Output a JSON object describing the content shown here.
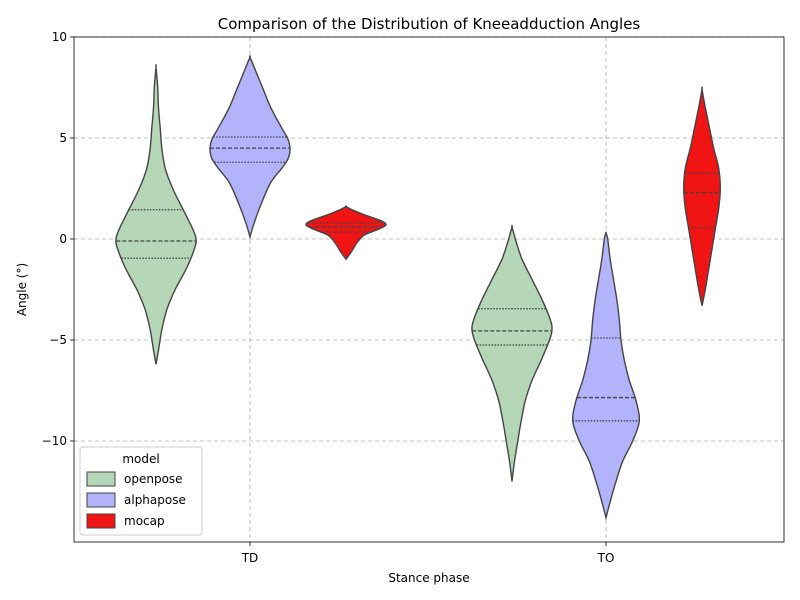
{
  "chart_data": {
    "type": "violin",
    "title": "Comparison of the Distribution of Kneeadduction Angles",
    "xlabel": "Stance phase",
    "ylabel": "Angle (°)",
    "categories": [
      "TD",
      "TO"
    ],
    "ylim": [
      -15,
      10
    ],
    "yticks": [
      -10,
      -5,
      0,
      5,
      10
    ],
    "grid": true,
    "legend": {
      "title": "model",
      "placement": "lower-left"
    },
    "series": [
      {
        "name": "openpose",
        "color": "#b5d6b7",
        "violins": [
          {
            "category": "TD",
            "profile": [
              [
                -6.2,
                0.0
              ],
              [
                -5.5,
                0.03
              ],
              [
                -4.5,
                0.07
              ],
              [
                -3.5,
                0.13
              ],
              [
                -2.5,
                0.23
              ],
              [
                -1.5,
                0.36
              ],
              [
                -0.5,
                0.46
              ],
              [
                0.0,
                0.48
              ],
              [
                0.5,
                0.44
              ],
              [
                1.5,
                0.32
              ],
              [
                2.5,
                0.2
              ],
              [
                3.5,
                0.11
              ],
              [
                4.5,
                0.07
              ],
              [
                5.5,
                0.05
              ],
              [
                6.5,
                0.03
              ],
              [
                7.5,
                0.02
              ],
              [
                8.5,
                0.0
              ]
            ],
            "quartiles": [
              -0.95,
              -0.1,
              1.45
            ]
          },
          {
            "category": "TO",
            "profile": [
              [
                -12.0,
                0.0
              ],
              [
                -11.0,
                0.03
              ],
              [
                -10.0,
                0.07
              ],
              [
                -9.0,
                0.11
              ],
              [
                -8.0,
                0.16
              ],
              [
                -7.0,
                0.24
              ],
              [
                -6.0,
                0.35
              ],
              [
                -5.0,
                0.45
              ],
              [
                -4.5,
                0.48
              ],
              [
                -4.0,
                0.46
              ],
              [
                -3.0,
                0.36
              ],
              [
                -2.0,
                0.24
              ],
              [
                -1.0,
                0.12
              ],
              [
                0.0,
                0.04
              ],
              [
                0.6,
                0.0
              ]
            ],
            "quartiles": [
              -5.25,
              -4.55,
              -3.45
            ]
          }
        ]
      },
      {
        "name": "alphapose",
        "color": "#b3b3fb",
        "violins": [
          {
            "category": "TD",
            "profile": [
              [
                0.1,
                0.0
              ],
              [
                0.8,
                0.05
              ],
              [
                1.8,
                0.14
              ],
              [
                2.8,
                0.25
              ],
              [
                3.5,
                0.38
              ],
              [
                4.0,
                0.46
              ],
              [
                4.5,
                0.48
              ],
              [
                5.0,
                0.45
              ],
              [
                5.5,
                0.38
              ],
              [
                6.5,
                0.25
              ],
              [
                7.5,
                0.15
              ],
              [
                8.5,
                0.05
              ],
              [
                9.0,
                0.0
              ]
            ],
            "quartiles": [
              3.8,
              4.5,
              5.05
            ]
          },
          {
            "category": "TO",
            "profile": [
              [
                -13.8,
                0.0
              ],
              [
                -13.0,
                0.05
              ],
              [
                -12.0,
                0.12
              ],
              [
                -11.0,
                0.2
              ],
              [
                -10.0,
                0.32
              ],
              [
                -9.0,
                0.4
              ],
              [
                -8.0,
                0.36
              ],
              [
                -7.0,
                0.28
              ],
              [
                -6.0,
                0.22
              ],
              [
                -5.0,
                0.18
              ],
              [
                -4.0,
                0.16
              ],
              [
                -3.0,
                0.13
              ],
              [
                -2.0,
                0.09
              ],
              [
                -1.0,
                0.05
              ],
              [
                0.0,
                0.02
              ],
              [
                0.3,
                0.0
              ]
            ],
            "quartiles": [
              -9.0,
              -7.85,
              -4.9
            ]
          }
        ]
      },
      {
        "name": "mocap",
        "color": "#f01414",
        "violins": [
          {
            "category": "TD",
            "profile": [
              [
                -1.0,
                0.0
              ],
              [
                -0.6,
                0.07
              ],
              [
                -0.2,
                0.13
              ],
              [
                0.2,
                0.22
              ],
              [
                0.5,
                0.4
              ],
              [
                0.7,
                0.48
              ],
              [
                0.9,
                0.42
              ],
              [
                1.2,
                0.22
              ],
              [
                1.4,
                0.1
              ],
              [
                1.6,
                0.0
              ]
            ],
            "quartiles": [
              0.35,
              0.6,
              0.8
            ]
          },
          {
            "category": "TO",
            "profile": [
              [
                -3.3,
                0.0
              ],
              [
                -2.5,
                0.04
              ],
              [
                -1.5,
                0.08
              ],
              [
                -0.5,
                0.12
              ],
              [
                0.5,
                0.16
              ],
              [
                1.5,
                0.2
              ],
              [
                2.5,
                0.22
              ],
              [
                3.5,
                0.2
              ],
              [
                4.5,
                0.14
              ],
              [
                5.5,
                0.09
              ],
              [
                6.5,
                0.04
              ],
              [
                7.4,
                0.0
              ]
            ],
            "quartiles": [
              0.55,
              2.3,
              3.25
            ]
          }
        ]
      }
    ]
  }
}
